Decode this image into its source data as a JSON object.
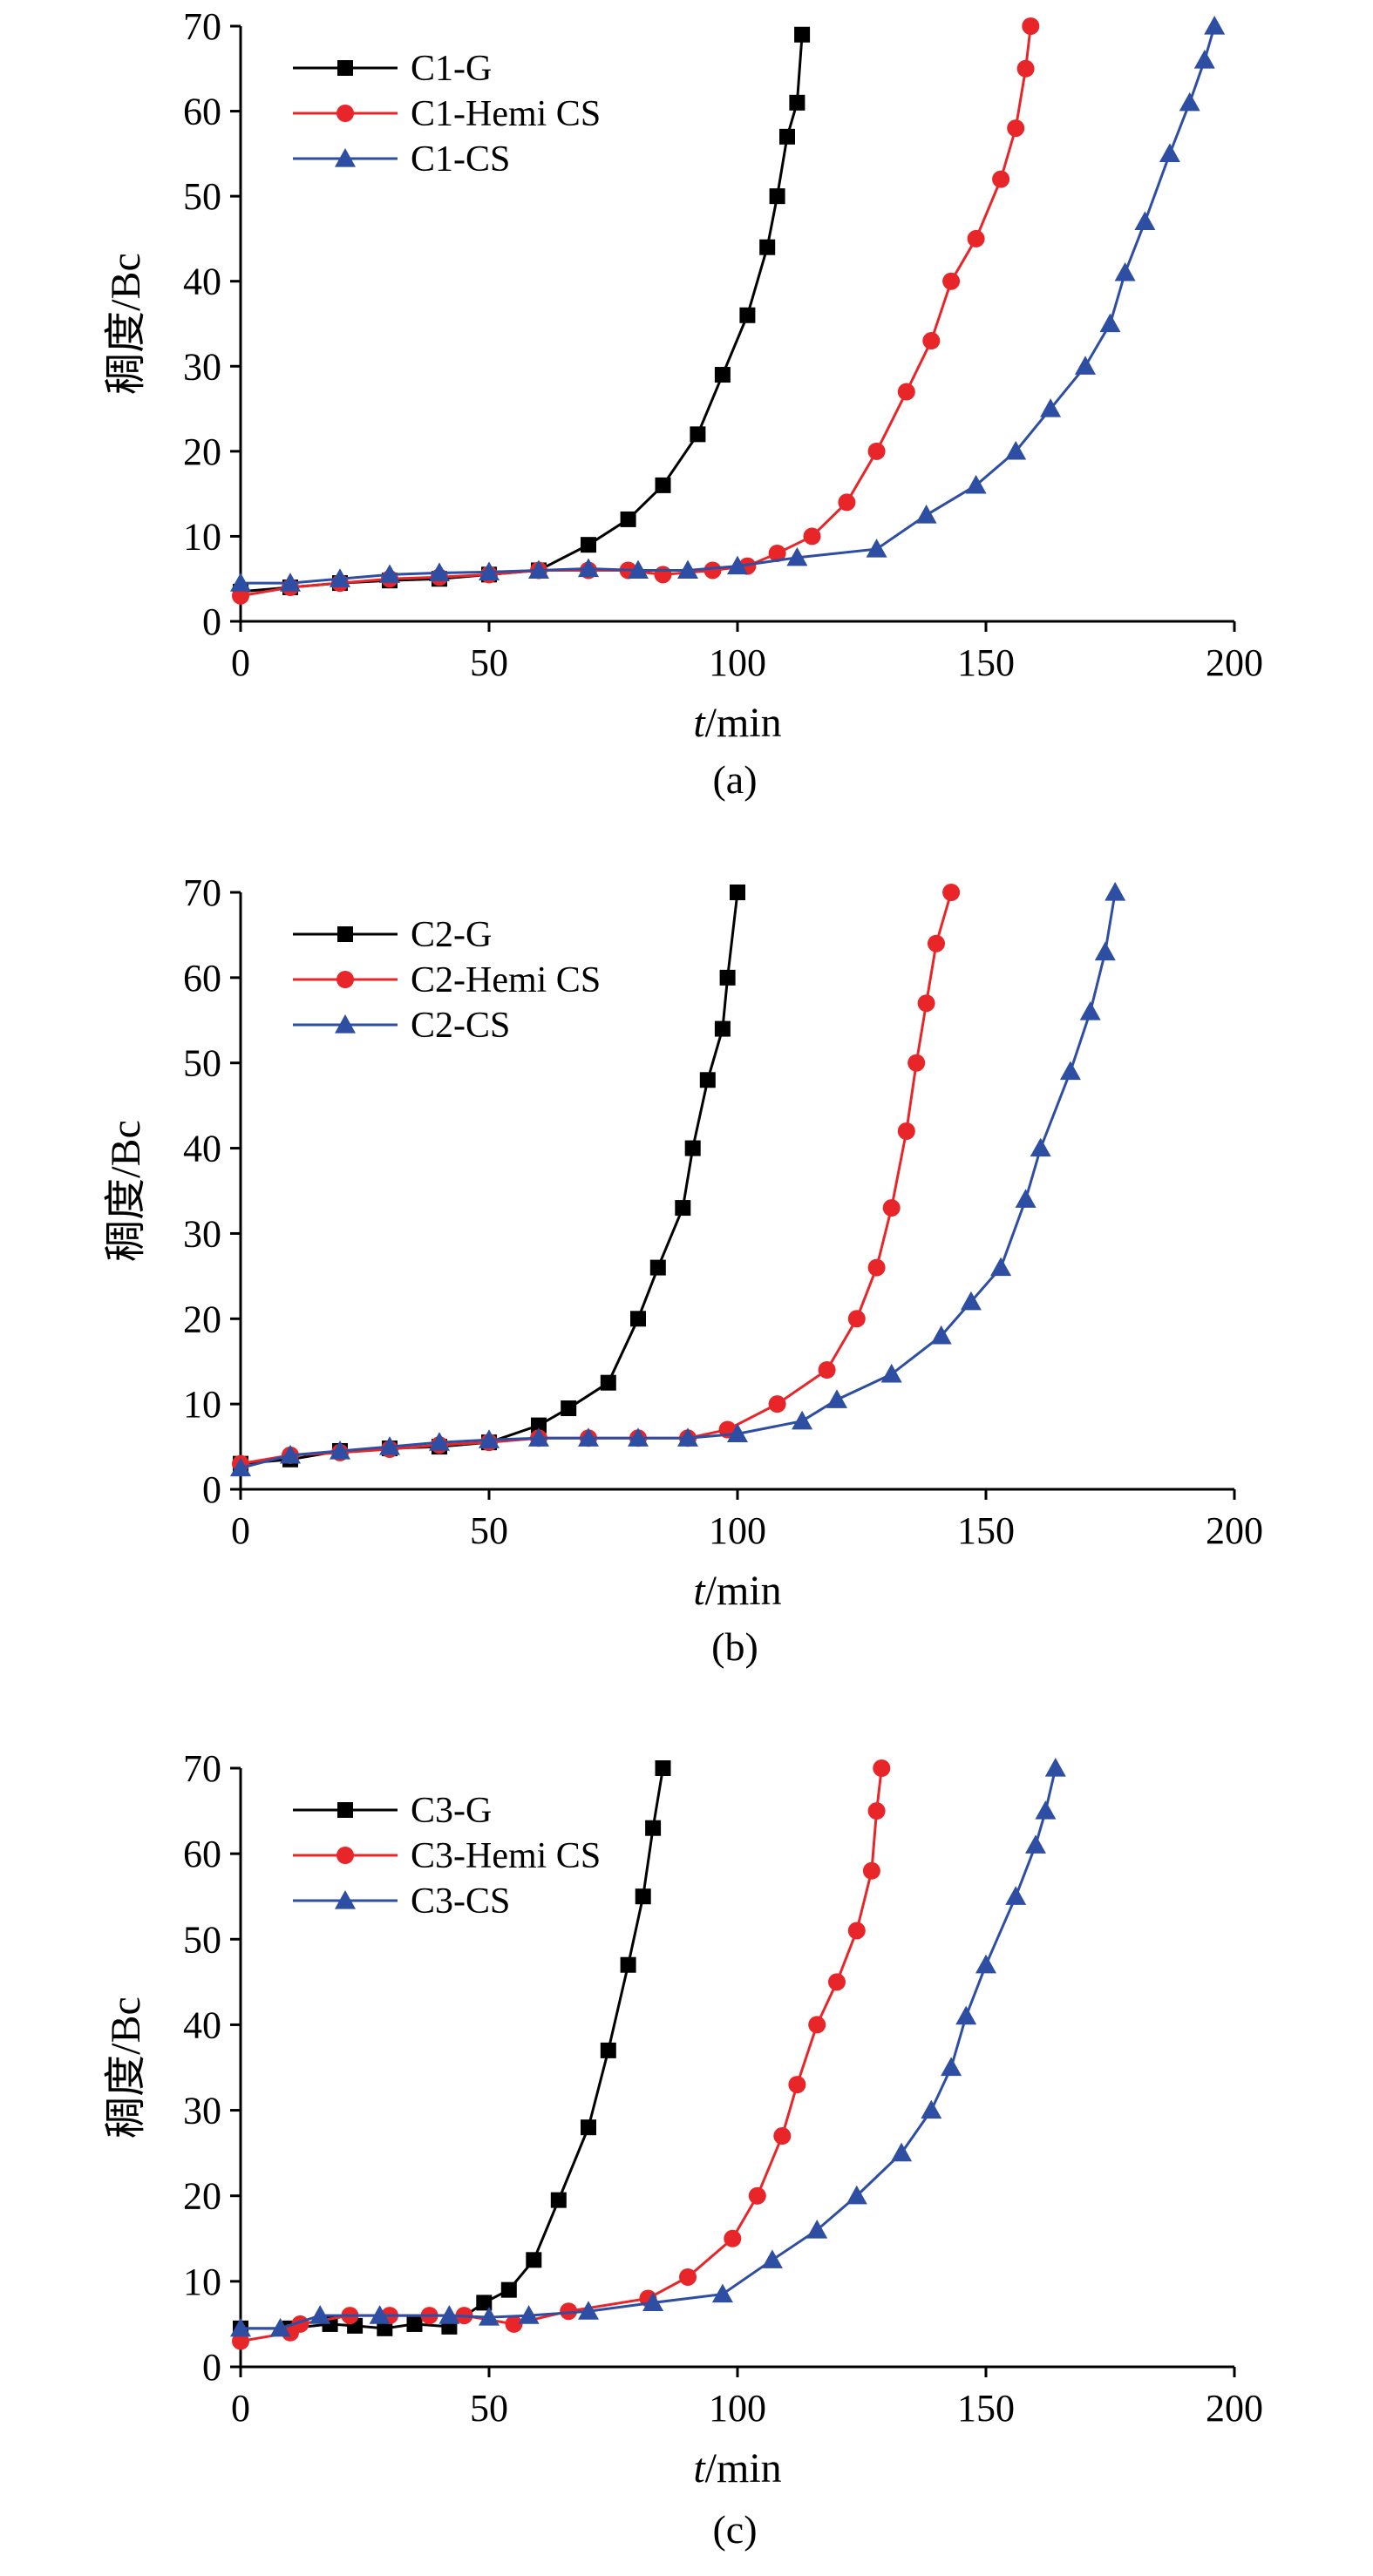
{
  "chart_data": [
    {
      "type": "line",
      "panel_label": "(a)",
      "xlabel_italic": "t",
      "xlabel_unit": "/min",
      "ylabel": "稠度/Bc",
      "xlim": [
        0,
        200
      ],
      "ylim": [
        0,
        70
      ],
      "xticks": [
        "0",
        "50",
        "100",
        "150",
        "200"
      ],
      "yticks": [
        "0",
        "10",
        "20",
        "30",
        "40",
        "50",
        "60",
        "70"
      ],
      "legend_position": "top-left",
      "series": [
        {
          "name": "C1-G",
          "color": "#000000",
          "marker": "square",
          "x": [
            0,
            10,
            20,
            30,
            40,
            50,
            60,
            70,
            78,
            85,
            92,
            97,
            102,
            106,
            108,
            110,
            112,
            113
          ],
          "y": [
            3.5,
            4,
            4.5,
            4.8,
            5,
            5.5,
            6,
            9,
            12,
            16,
            22,
            29,
            36,
            44,
            50,
            57,
            61,
            69
          ]
        },
        {
          "name": "C1-Hemi CS",
          "color": "#e8262a",
          "marker": "circle",
          "x": [
            0,
            10,
            20,
            30,
            40,
            50,
            60,
            70,
            78,
            85,
            95,
            102,
            108,
            115,
            122,
            128,
            134,
            139,
            143,
            148,
            153,
            156,
            158,
            159
          ],
          "y": [
            3,
            4,
            4.5,
            5,
            5.2,
            5.5,
            6,
            6,
            6,
            5.5,
            6,
            6.5,
            8,
            10,
            14,
            20,
            27,
            33,
            40,
            45,
            52,
            58,
            65,
            70
          ]
        },
        {
          "name": "C1-CS",
          "color": "#2e4ea3",
          "marker": "triangle",
          "x": [
            0,
            10,
            20,
            30,
            40,
            50,
            60,
            70,
            80,
            90,
            100,
            112,
            128,
            138,
            148,
            156,
            163,
            170,
            175,
            178,
            182,
            187,
            191,
            194,
            196
          ],
          "y": [
            4.5,
            4.5,
            5,
            5.5,
            5.7,
            5.8,
            6,
            6.2,
            6,
            6,
            6.5,
            7.5,
            8.5,
            12.5,
            16,
            20,
            25,
            30,
            35,
            41,
            47,
            55,
            61,
            66,
            70
          ]
        }
      ]
    },
    {
      "type": "line",
      "panel_label": "(b)",
      "xlabel_italic": "t",
      "xlabel_unit": "/min",
      "ylabel": "稠度/Bc",
      "xlim": [
        0,
        200
      ],
      "ylim": [
        0,
        70
      ],
      "xticks": [
        "0",
        "50",
        "100",
        "150",
        "200"
      ],
      "yticks": [
        "0",
        "10",
        "20",
        "30",
        "40",
        "50",
        "60",
        "70"
      ],
      "legend_position": "top-left",
      "series": [
        {
          "name": "C2-G",
          "color": "#000000",
          "marker": "square",
          "x": [
            0,
            10,
            20,
            30,
            40,
            50,
            60,
            66,
            74,
            80,
            84,
            89,
            91,
            94,
            97,
            98,
            100
          ],
          "y": [
            3,
            3.5,
            4.5,
            4.8,
            5,
            5.5,
            7.5,
            9.5,
            12.5,
            20,
            26,
            33,
            40,
            48,
            54,
            60,
            70
          ]
        },
        {
          "name": "C2-Hemi CS",
          "color": "#e8262a",
          "marker": "circle",
          "x": [
            0,
            10,
            20,
            30,
            40,
            50,
            60,
            70,
            80,
            90,
            98,
            108,
            118,
            124,
            128,
            131,
            134,
            136,
            138,
            140,
            143
          ],
          "y": [
            3,
            4,
            4.3,
            4.7,
            5.2,
            5.5,
            6,
            6,
            6,
            6,
            7,
            10,
            14,
            20,
            26,
            33,
            42,
            50,
            57,
            64,
            70
          ]
        },
        {
          "name": "C2-CS",
          "color": "#2e4ea3",
          "marker": "triangle",
          "x": [
            0,
            10,
            20,
            30,
            40,
            50,
            60,
            70,
            80,
            90,
            100,
            113,
            120,
            131,
            141,
            147,
            153,
            158,
            161,
            167,
            171,
            174,
            176
          ],
          "y": [
            2.5,
            4,
            4.5,
            5,
            5.5,
            5.8,
            6,
            6,
            6,
            6,
            6.5,
            8,
            10.5,
            13.5,
            18,
            22,
            26,
            34,
            40,
            49,
            56,
            63,
            70
          ]
        }
      ]
    },
    {
      "type": "line",
      "panel_label": "(c)",
      "xlabel_italic": "t",
      "xlabel_unit": "/min",
      "ylabel": "稠度/Bc",
      "xlim": [
        0,
        200
      ],
      "ylim": [
        0,
        70
      ],
      "xticks": [
        "0",
        "50",
        "100",
        "150",
        "200"
      ],
      "yticks": [
        "0",
        "10",
        "20",
        "30",
        "40",
        "50",
        "60",
        "70"
      ],
      "legend_position": "top-left",
      "series": [
        {
          "name": "C3-G",
          "color": "#000000",
          "marker": "square",
          "x": [
            0,
            10,
            18,
            23,
            29,
            35,
            42,
            49,
            54,
            59,
            64,
            70,
            74,
            78,
            81,
            83,
            85
          ],
          "y": [
            4.5,
            4.5,
            5,
            4.8,
            4.5,
            5,
            4.7,
            7.5,
            9,
            12.5,
            19.5,
            28,
            37,
            47,
            55,
            63,
            70
          ]
        },
        {
          "name": "C3-Hemi CS",
          "color": "#e8262a",
          "marker": "circle",
          "x": [
            0,
            10,
            12,
            22,
            30,
            38,
            45,
            55,
            66,
            82,
            90,
            99,
            104,
            109,
            112,
            116,
            120,
            124,
            127,
            128,
            129
          ],
          "y": [
            3,
            4,
            5,
            6,
            6,
            6,
            6,
            5,
            6.5,
            8,
            10.5,
            15,
            20,
            27,
            33,
            40,
            45,
            51,
            58,
            65,
            70
          ]
        },
        {
          "name": "C3-CS",
          "color": "#2e4ea3",
          "marker": "triangle",
          "x": [
            0,
            8,
            16,
            28,
            42,
            50,
            58,
            70,
            83,
            97,
            107,
            116,
            124,
            133,
            139,
            143,
            146,
            150,
            156,
            160,
            162,
            164
          ],
          "y": [
            4.5,
            4.5,
            6,
            6,
            6,
            5.8,
            6,
            6.5,
            7.5,
            8.5,
            12.5,
            16,
            20,
            25,
            30,
            35,
            41,
            47,
            55,
            61,
            65,
            70
          ]
        }
      ]
    }
  ]
}
